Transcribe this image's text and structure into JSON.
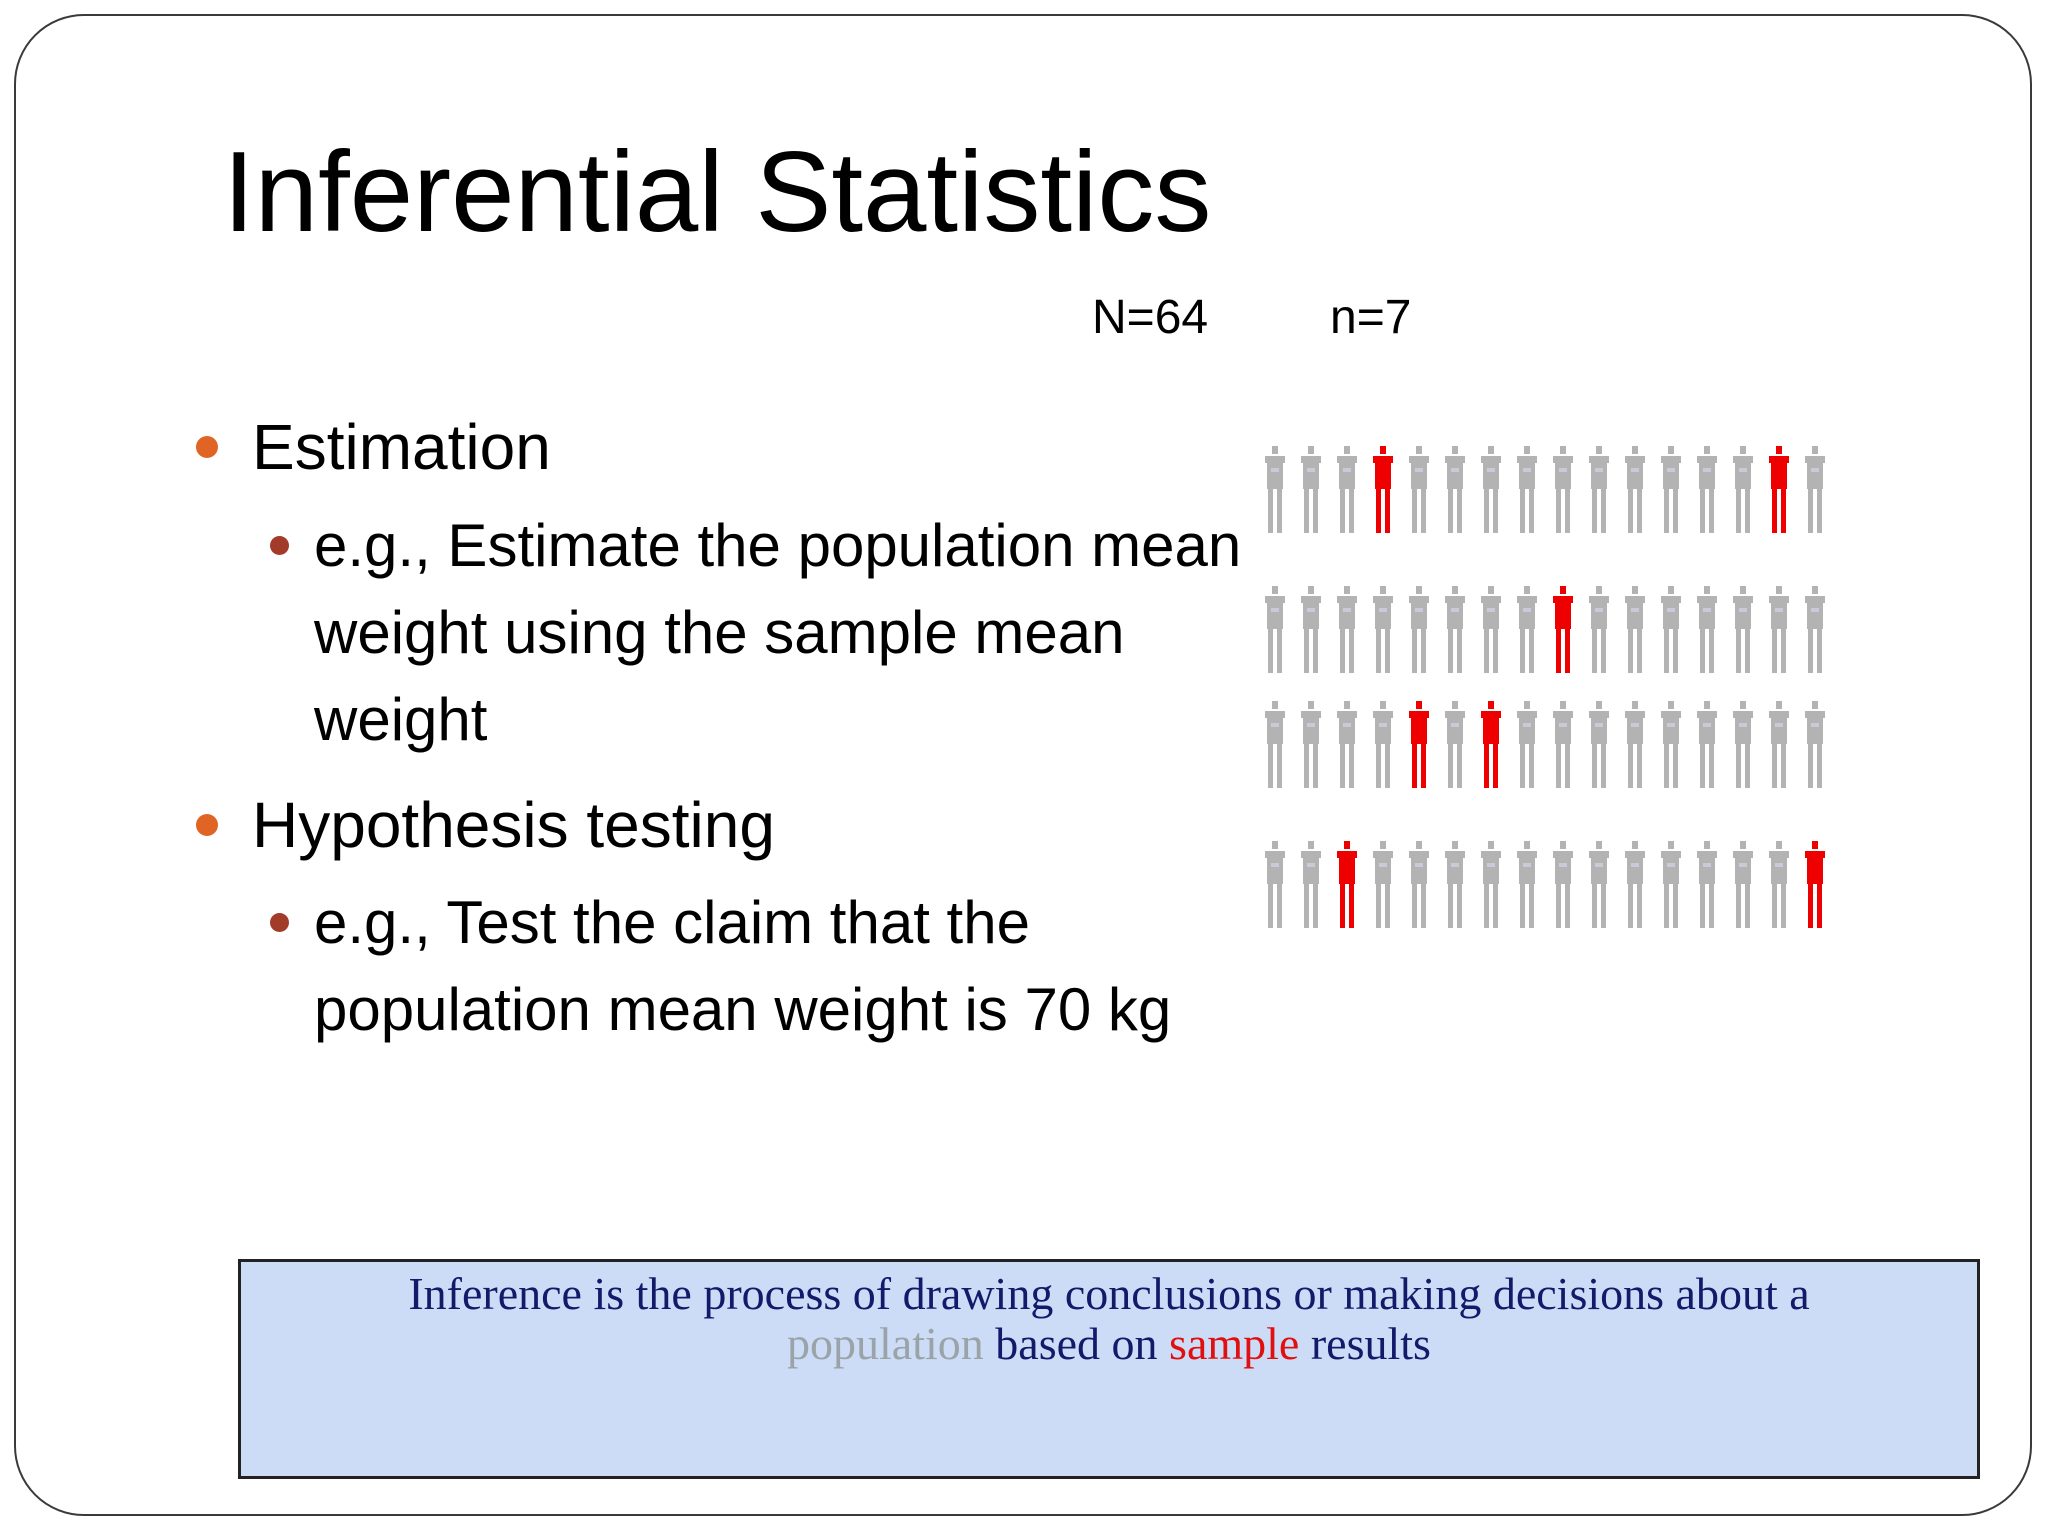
{
  "slide": {
    "title": "Inferential Statistics",
    "population_label": "N=64",
    "sample_label": "n=7",
    "bullets": [
      {
        "label": "Estimation",
        "sub": "e.g., Estimate the population mean weight using the sample mean weight"
      },
      {
        "label": "Hypothesis testing",
        "sub": "e.g., Test the claim that the population mean weight is 70 kg"
      }
    ],
    "callout": {
      "line1": "Inference is the process of drawing conclusions or making decisions about a",
      "word_population": "population",
      "word_based_on": "based on",
      "word_sample": "sample",
      "word_results": "results"
    }
  },
  "figure": {
    "rows": 4,
    "per_row": 16,
    "sampled": [
      [
        3,
        14
      ],
      [
        8
      ],
      [
        4,
        6
      ],
      [
        2,
        15
      ]
    ],
    "colors": {
      "population": "#b3b3b3",
      "sample": "#ee0000",
      "bullet1": "#e06424",
      "bullet2": "#a23b2a",
      "callout_text": "#141a6a",
      "callout_bg": "#ccdcf6"
    }
  }
}
